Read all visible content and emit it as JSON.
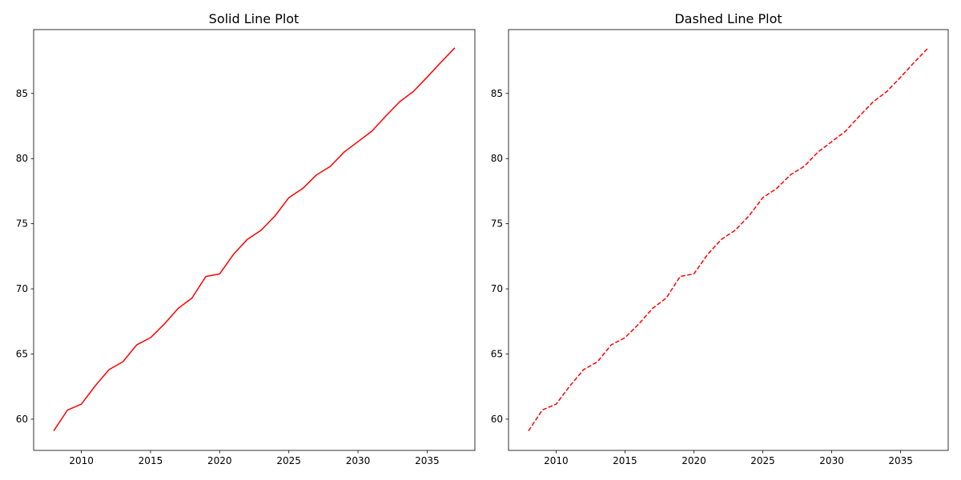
{
  "chart_data": [
    {
      "type": "line",
      "title": "Solid Line Plot",
      "line_style": "solid",
      "color": "#ff0000",
      "xlabel": "",
      "ylabel": "",
      "xlim": [
        2006.55,
        2038.45
      ],
      "ylim": [
        57.6,
        89.9
      ],
      "xticks": [
        2010,
        2015,
        2020,
        2025,
        2030,
        2035
      ],
      "yticks": [
        60,
        65,
        70,
        75,
        80,
        85
      ],
      "grid": false,
      "series": [
        {
          "x": [
            2008,
            2009,
            2010,
            2011,
            2012,
            2013,
            2014,
            2015,
            2016,
            2017,
            2018,
            2019,
            2020,
            2021,
            2022,
            2023,
            2024,
            2025,
            2026,
            2027,
            2028,
            2029,
            2030,
            2031,
            2032,
            2033,
            2034,
            2035,
            2036,
            2037
          ],
          "values": [
            59.1,
            60.7,
            61.15,
            62.55,
            63.8,
            64.4,
            65.7,
            66.25,
            67.3,
            68.5,
            69.3,
            70.95,
            71.15,
            72.65,
            73.8,
            74.5,
            75.6,
            77.0,
            77.7,
            78.75,
            79.4,
            80.5,
            81.3,
            82.1,
            83.25,
            84.35,
            85.15,
            86.25,
            87.4,
            88.5
          ]
        }
      ]
    },
    {
      "type": "line",
      "title": "Dashed Line Plot",
      "line_style": "dashed",
      "color": "#ff0000",
      "xlabel": "",
      "ylabel": "",
      "xlim": [
        2006.55,
        2038.45
      ],
      "ylim": [
        57.6,
        89.9
      ],
      "xticks": [
        2010,
        2015,
        2020,
        2025,
        2030,
        2035
      ],
      "yticks": [
        60,
        65,
        70,
        75,
        80,
        85
      ],
      "grid": false,
      "series": [
        {
          "x": [
            2008,
            2009,
            2010,
            2011,
            2012,
            2013,
            2014,
            2015,
            2016,
            2017,
            2018,
            2019,
            2020,
            2021,
            2022,
            2023,
            2024,
            2025,
            2026,
            2027,
            2028,
            2029,
            2030,
            2031,
            2032,
            2033,
            2034,
            2035,
            2036,
            2037
          ],
          "values": [
            59.1,
            60.7,
            61.15,
            62.55,
            63.8,
            64.4,
            65.7,
            66.25,
            67.3,
            68.5,
            69.3,
            70.95,
            71.15,
            72.65,
            73.8,
            74.5,
            75.6,
            77.0,
            77.7,
            78.75,
            79.4,
            80.5,
            81.3,
            82.1,
            83.25,
            84.35,
            85.15,
            86.25,
            87.4,
            88.5
          ]
        }
      ]
    }
  ]
}
